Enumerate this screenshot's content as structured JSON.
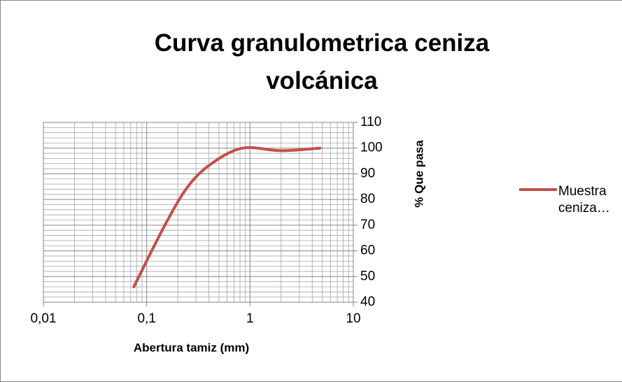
{
  "chart_data": {
    "type": "line",
    "title": "Curva granulometrica ceniza volcánica",
    "x_label": "Abertura tamiz (mm)",
    "y_label": "% Que pasa",
    "x": [
      0.075,
      0.15,
      0.25,
      0.425,
      0.85,
      2,
      4.75
    ],
    "series": [
      {
        "name": "Muestra ceniza…",
        "color": "#c0504d",
        "values": [
          46,
          70,
          85,
          94,
          100,
          99,
          100
        ]
      }
    ],
    "x_log": true,
    "xlim": [
      0.01,
      10
    ],
    "xticks": [
      {
        "value": 0.01,
        "label": "0,01"
      },
      {
        "value": 0.1,
        "label": "0,1"
      },
      1,
      10
    ],
    "ylim": [
      40,
      110
    ],
    "yticks": [
      40,
      50,
      60,
      70,
      80,
      90,
      100,
      110
    ],
    "y_axis_side": "right",
    "grid": true,
    "minor_grid": true,
    "legend": "right"
  }
}
